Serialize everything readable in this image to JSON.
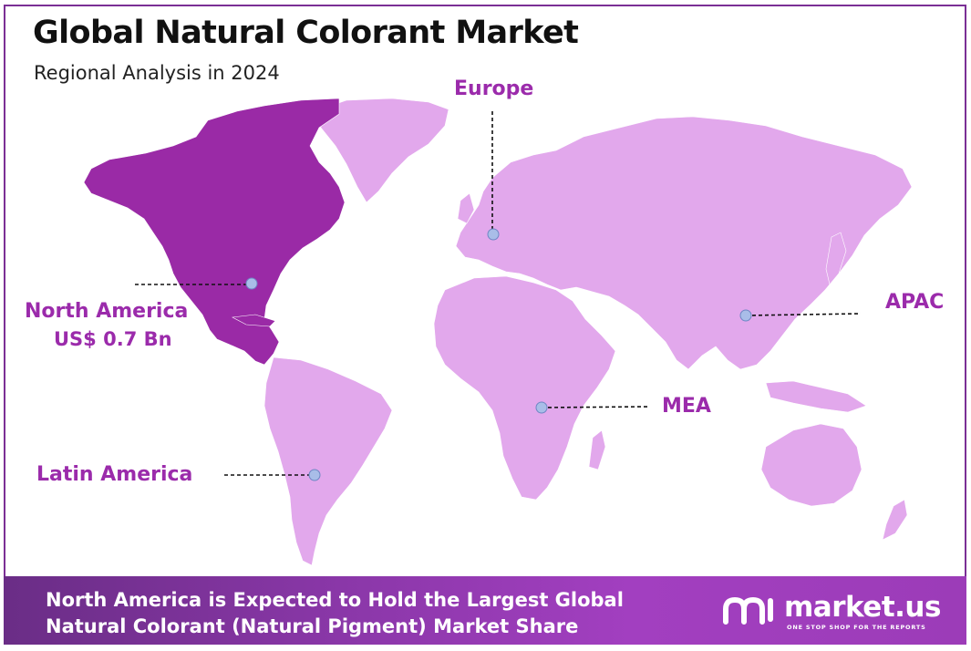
{
  "header": {
    "title": "Global Natural Colorant Market",
    "subtitle": "Regional Analysis in 2024"
  },
  "regions": [
    {
      "name": "North America",
      "value": "US$ 0.7 Bn",
      "highlighted": true
    },
    {
      "name": "Europe",
      "highlighted": false
    },
    {
      "name": "APAC",
      "highlighted": false
    },
    {
      "name": "MEA",
      "highlighted": false
    },
    {
      "name": "Latin America",
      "highlighted": false
    }
  ],
  "banner": {
    "line1": "North America is Expected to Hold the Largest Global",
    "line2": "Natural Colorant (Natural Pigment) Market Share"
  },
  "logo": {
    "name": "market.us",
    "tagline": "ONE STOP SHOP FOR THE REPORTS"
  },
  "colors": {
    "highlight_region": "#9a2aa6",
    "other_regions": "#e2a8ec",
    "label_text": "#9b2bab",
    "marker": "#a9bde8",
    "border": "#7b2f95"
  }
}
